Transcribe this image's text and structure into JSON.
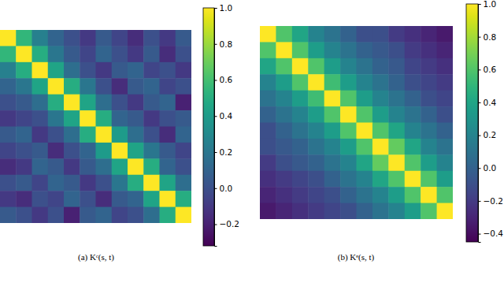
{
  "chart_data": [
    {
      "type": "heatmap",
      "title": "(a) Kᶜ(s, t)",
      "color": "viridis",
      "tick_labels": false,
      "zlim": [
        -0.32,
        1.0
      ],
      "zticks": [
        {
          "value": -0.2,
          "label": "−0.2"
        },
        {
          "value": 0.0,
          "label": "0.0"
        },
        0.2,
        0.4,
        0.6,
        0.8,
        {
          "value": 1.0,
          "label": "1.0"
        }
      ],
      "z": [
        [
          1.0,
          0.55,
          0.25,
          0.1,
          0.0,
          -0.1,
          0.05,
          -0.05,
          -0.15,
          0.0,
          -0.1,
          0.05
        ],
        [
          0.55,
          1.0,
          0.5,
          0.2,
          0.05,
          -0.05,
          0.1,
          0.0,
          -0.1,
          0.05,
          -0.15,
          0.0
        ],
        [
          0.25,
          0.5,
          1.0,
          0.45,
          0.15,
          0.0,
          -0.1,
          0.05,
          0.1,
          -0.05,
          0.0,
          -0.1
        ],
        [
          0.1,
          0.2,
          0.45,
          1.0,
          0.5,
          0.2,
          0.0,
          -0.15,
          0.05,
          0.1,
          -0.05,
          0.0
        ],
        [
          0.0,
          0.05,
          0.15,
          0.5,
          1.0,
          0.45,
          0.15,
          0.0,
          -0.1,
          0.05,
          0.1,
          -0.2
        ],
        [
          -0.1,
          -0.05,
          0.0,
          0.2,
          0.45,
          1.0,
          0.5,
          0.1,
          0.05,
          -0.1,
          0.0,
          0.05
        ],
        [
          0.05,
          0.1,
          -0.1,
          0.0,
          0.15,
          0.5,
          1.0,
          0.4,
          0.15,
          0.0,
          -0.15,
          0.1
        ],
        [
          -0.05,
          0.0,
          0.05,
          -0.15,
          0.0,
          0.1,
          0.4,
          1.0,
          0.45,
          0.2,
          0.05,
          -0.05
        ],
        [
          -0.15,
          -0.1,
          0.1,
          0.05,
          -0.1,
          0.05,
          0.15,
          0.45,
          1.0,
          0.5,
          0.1,
          0.0
        ],
        [
          0.0,
          0.05,
          -0.05,
          0.1,
          0.05,
          -0.1,
          0.0,
          0.2,
          0.5,
          1.0,
          0.45,
          0.15
        ],
        [
          -0.1,
          -0.15,
          0.0,
          -0.05,
          0.1,
          0.0,
          -0.15,
          0.05,
          0.1,
          0.45,
          1.0,
          0.5
        ],
        [
          0.05,
          0.0,
          -0.1,
          0.0,
          -0.2,
          0.05,
          0.1,
          -0.05,
          0.0,
          0.15,
          0.5,
          1.0
        ]
      ]
    },
    {
      "type": "heatmap",
      "title": "(b) Kᵉ(s, t)",
      "color": "viridis",
      "tick_labels": false,
      "zlim": [
        -0.45,
        1.0
      ],
      "zticks": [
        {
          "value": -0.4,
          "label": "−0.4"
        },
        {
          "value": -0.2,
          "label": "−0.2"
        },
        {
          "value": 0.0,
          "label": "0.0"
        },
        0.2,
        0.4,
        0.6,
        0.8,
        {
          "value": 1.0,
          "label": "1.0"
        }
      ],
      "z": [
        [
          1.0,
          0.6,
          0.4,
          0.2,
          0.1,
          0.0,
          -0.1,
          -0.1,
          -0.2,
          -0.25,
          -0.3,
          -0.35
        ],
        [
          0.6,
          1.0,
          0.6,
          0.35,
          0.2,
          0.1,
          0.0,
          -0.05,
          -0.1,
          -0.2,
          -0.25,
          -0.3
        ],
        [
          0.4,
          0.6,
          1.0,
          0.6,
          0.35,
          0.2,
          0.1,
          0.0,
          -0.05,
          -0.15,
          -0.2,
          -0.25
        ],
        [
          0.2,
          0.35,
          0.6,
          1.0,
          0.55,
          0.35,
          0.2,
          0.1,
          0.0,
          -0.1,
          -0.15,
          -0.2
        ],
        [
          0.1,
          0.2,
          0.35,
          0.55,
          1.0,
          0.6,
          0.35,
          0.2,
          0.1,
          0.0,
          -0.1,
          -0.15
        ],
        [
          0.0,
          0.1,
          0.2,
          0.35,
          0.6,
          1.0,
          0.6,
          0.35,
          0.2,
          0.1,
          0.0,
          -0.1
        ],
        [
          -0.1,
          0.0,
          0.1,
          0.2,
          0.35,
          0.6,
          1.0,
          0.6,
          0.4,
          0.2,
          0.1,
          0.0
        ],
        [
          -0.1,
          -0.05,
          0.0,
          0.1,
          0.2,
          0.35,
          0.6,
          1.0,
          0.65,
          0.4,
          0.2,
          0.1
        ],
        [
          -0.2,
          -0.1,
          -0.05,
          0.0,
          0.1,
          0.2,
          0.4,
          0.65,
          1.0,
          0.6,
          0.35,
          0.2
        ],
        [
          -0.25,
          -0.2,
          -0.15,
          -0.1,
          0.0,
          0.1,
          0.2,
          0.4,
          0.6,
          1.0,
          0.6,
          0.35
        ],
        [
          -0.3,
          -0.25,
          -0.2,
          -0.15,
          -0.1,
          0.0,
          0.1,
          0.2,
          0.35,
          0.6,
          1.0,
          0.6
        ],
        [
          -0.35,
          -0.3,
          -0.25,
          -0.2,
          -0.15,
          -0.1,
          0.0,
          0.1,
          0.2,
          0.35,
          0.6,
          1.0
        ]
      ]
    }
  ]
}
